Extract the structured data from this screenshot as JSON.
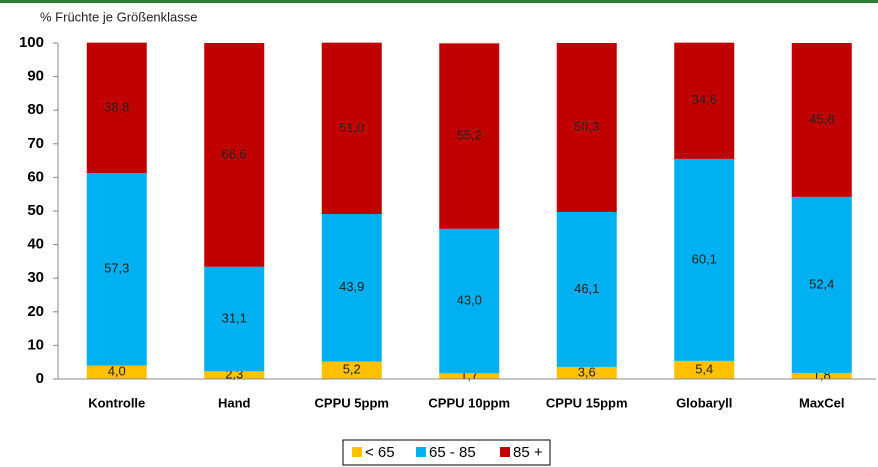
{
  "chart_data": {
    "type": "stacked_bar",
    "y_axis_title": "% Früchte je Größenklasse",
    "categories": [
      "Kontrolle",
      "Hand",
      "CPPU 5ppm",
      "CPPU 10ppm",
      "CPPU 15ppm",
      "Globaryll",
      "MaxCel"
    ],
    "series": [
      {
        "name": "< 65",
        "color": "#ffc000",
        "values": [
          4.0,
          2.3,
          5.2,
          1.7,
          3.6,
          5.4,
          1.8
        ],
        "value_labels": [
          "4,0",
          "2,3",
          "5,2",
          "1,7",
          "3,6",
          "5,4",
          "1,8"
        ]
      },
      {
        "name": "65 - 85",
        "color": "#00b0f0",
        "values": [
          57.3,
          31.1,
          43.9,
          43.0,
          46.1,
          60.1,
          52.4
        ],
        "value_labels": [
          "57,3",
          "31,1",
          "43,9",
          "43,0",
          "46,1",
          "60,1",
          "52,4"
        ]
      },
      {
        "name": "85 +",
        "color": "#c00000",
        "values": [
          38.8,
          66.6,
          51.0,
          55.2,
          50.3,
          34.6,
          45.8
        ],
        "value_labels": [
          "38,8",
          "66,6",
          "51,0",
          "55,2",
          "50,3",
          "34,6",
          "45,8"
        ]
      }
    ],
    "ylim": [
      0,
      100
    ],
    "yticks": [
      0,
      10,
      20,
      30,
      40,
      50,
      60,
      70,
      80,
      90,
      100
    ],
    "grid": false,
    "legend": "bottom"
  }
}
